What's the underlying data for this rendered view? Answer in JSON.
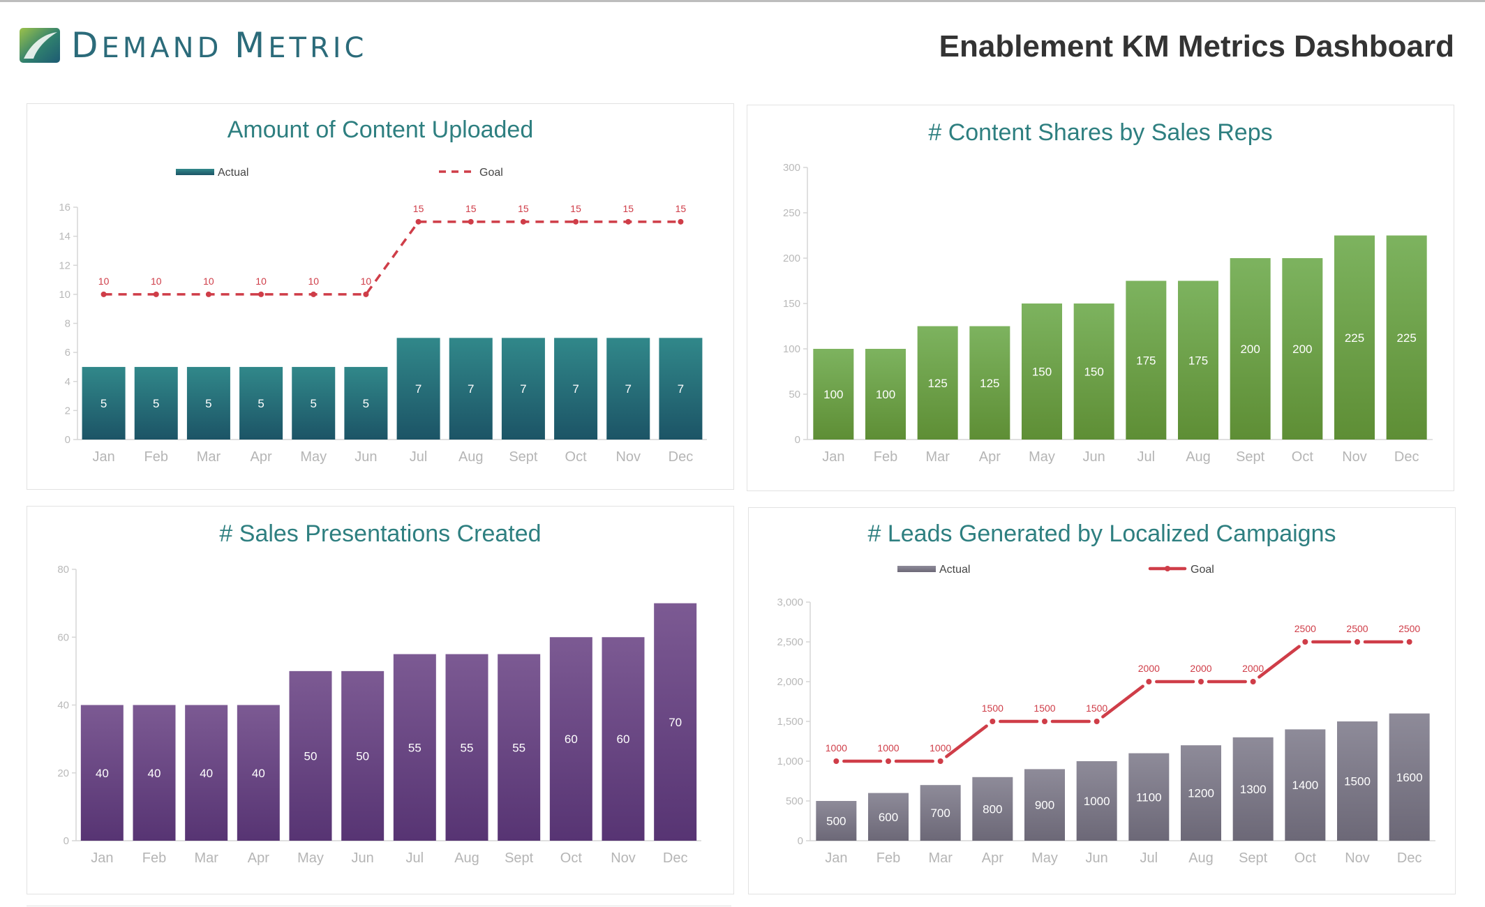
{
  "brand": {
    "name_parts": [
      "D",
      "EMAND ",
      "M",
      "ETRIC"
    ]
  },
  "page": {
    "title": "Enablement KM Metrics Dashboard"
  },
  "chart_data": [
    {
      "id": "content-uploaded",
      "type": "bar",
      "title": "Amount of Content Uploaded",
      "categories": [
        "Jan",
        "Feb",
        "Mar",
        "Apr",
        "May",
        "Jun",
        "Jul",
        "Aug",
        "Sept",
        "Oct",
        "Nov",
        "Dec"
      ],
      "series": [
        {
          "name": "Actual",
          "kind": "bar",
          "values": [
            5,
            5,
            5,
            5,
            5,
            5,
            7,
            7,
            7,
            7,
            7,
            7
          ],
          "color_top": "#31888a",
          "color_bottom": "#1c5466"
        },
        {
          "name": "Goal",
          "kind": "line",
          "style": "dashed",
          "values": [
            10,
            10,
            10,
            10,
            10,
            10,
            15,
            15,
            15,
            15,
            15,
            15
          ],
          "color": "#cf3d48"
        }
      ],
      "ylim": [
        0,
        16
      ],
      "yticks": [
        0,
        2,
        4,
        6,
        8,
        10,
        12,
        14,
        16
      ],
      "ytick_labels": [
        "0",
        "2",
        "4",
        "6",
        "8",
        "10",
        "12",
        "14",
        "16"
      ],
      "legend": "top"
    },
    {
      "id": "content-shares",
      "type": "bar",
      "title": "# Content Shares by Sales Reps",
      "categories": [
        "Jan",
        "Feb",
        "Mar",
        "Apr",
        "May",
        "Jun",
        "Jul",
        "Aug",
        "Sept",
        "Oct",
        "Nov",
        "Dec"
      ],
      "series": [
        {
          "kind": "bar",
          "values": [
            100,
            100,
            125,
            125,
            150,
            150,
            175,
            175,
            200,
            200,
            225,
            225
          ],
          "color_top": "#7db35f",
          "color_bottom": "#5e8e35"
        }
      ],
      "ylim": [
        0,
        300
      ],
      "yticks": [
        0,
        50,
        100,
        150,
        200,
        250,
        300
      ],
      "ytick_labels": [
        "0",
        "50",
        "100",
        "150",
        "200",
        "250",
        "300"
      ],
      "legend": "none"
    },
    {
      "id": "sales-presentations",
      "type": "bar",
      "title": "# Sales Presentations Created",
      "categories": [
        "Jan",
        "Feb",
        "Mar",
        "Apr",
        "May",
        "Jun",
        "Jul",
        "Aug",
        "Sept",
        "Oct",
        "Nov",
        "Dec"
      ],
      "series": [
        {
          "kind": "bar",
          "values": [
            40,
            40,
            40,
            40,
            50,
            50,
            55,
            55,
            55,
            60,
            60,
            70
          ],
          "color_top": "#7c5a93",
          "color_bottom": "#573473"
        }
      ],
      "ylim": [
        0,
        80
      ],
      "yticks": [
        0,
        20,
        40,
        60,
        80
      ],
      "ytick_labels": [
        "0",
        "20",
        "40",
        "60",
        "80"
      ],
      "legend": "none"
    },
    {
      "id": "leads-generated",
      "type": "bar",
      "title": "# Leads Generated by Localized Campaigns",
      "categories": [
        "Jan",
        "Feb",
        "Mar",
        "Apr",
        "May",
        "Jun",
        "Jul",
        "Aug",
        "Sept",
        "Oct",
        "Nov",
        "Dec"
      ],
      "series": [
        {
          "name": "Actual",
          "kind": "bar",
          "values": [
            500,
            600,
            700,
            800,
            900,
            1000,
            1100,
            1200,
            1300,
            1400,
            1500,
            1600
          ],
          "color_top": "#8e8b99",
          "color_bottom": "#6c6877"
        },
        {
          "name": "Goal",
          "kind": "line",
          "style": "stepped",
          "values": [
            1000,
            1000,
            1000,
            1500,
            1500,
            1500,
            2000,
            2000,
            2000,
            2500,
            2500,
            2500
          ],
          "color": "#cf3d48"
        }
      ],
      "ylim": [
        0,
        3000
      ],
      "yticks": [
        0,
        500,
        1000,
        1500,
        2000,
        2500,
        3000
      ],
      "ytick_labels": [
        "0",
        "500",
        "1,000",
        "1,500",
        "2,000",
        "2,500",
        "3,000"
      ],
      "legend": "top"
    }
  ]
}
